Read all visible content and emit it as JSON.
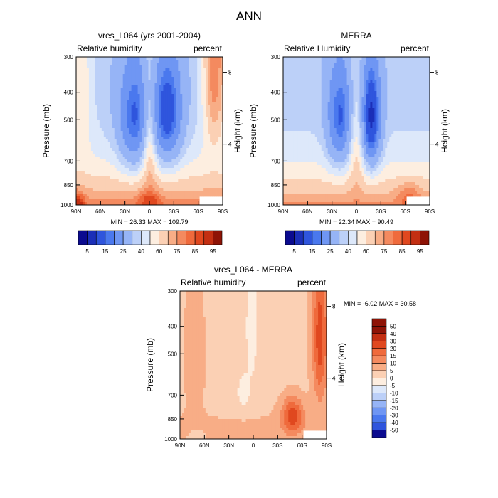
{
  "figure_title": "ANN",
  "chart_data": [
    {
      "type": "heatmap",
      "title": "vres_L064 (yrs 2001-2004)",
      "left_label": "Relative humidity",
      "right_label": "percent",
      "ylabel": "Pressure (mb)",
      "y2label": "Height (km)",
      "y_ticks": [
        300,
        400,
        500,
        700,
        850,
        1000
      ],
      "y2_ticks": [
        8,
        4
      ],
      "x_ticks": [
        "90N",
        "60N",
        "30N",
        "0",
        "30S",
        "60S",
        "90S"
      ],
      "stats": "MIN =  26.33  MAX = 109.79",
      "colorbar_labels": [
        "5",
        "15",
        "25",
        "40",
        "60",
        "75",
        "85",
        "95"
      ],
      "field": "model"
    },
    {
      "type": "heatmap",
      "title": "MERRA",
      "left_label": "Relative Humidity",
      "right_label": "percent",
      "ylabel": "Pressure (mb)",
      "y2label": "Height (km)",
      "y_ticks": [
        300,
        400,
        500,
        700,
        850,
        1000
      ],
      "y2_ticks": [
        8,
        4
      ],
      "x_ticks": [
        "90N",
        "60N",
        "30N",
        "0",
        "30S",
        "60S",
        "90S"
      ],
      "stats": "MIN =  22.34  MAX =  90.49",
      "colorbar_labels": [
        "5",
        "15",
        "25",
        "40",
        "60",
        "75",
        "85",
        "95"
      ],
      "field": "obs"
    },
    {
      "type": "heatmap",
      "title": "vres_L064 - MERRA",
      "left_label": "Relative humidity",
      "right_label": "percent",
      "ylabel": "Pressure (mb)",
      "y2label": "Height (km)",
      "y_ticks": [
        300,
        400,
        500,
        700,
        850,
        1000
      ],
      "y2_ticks": [
        8,
        4
      ],
      "x_ticks": [
        "90N",
        "60N",
        "30N",
        "0",
        "30S",
        "60S",
        "90S"
      ],
      "stats": "MIN = -6.02  MAX =  30.58",
      "colorbar_labels": [
        "50",
        "40",
        "30",
        "20",
        "15",
        "10",
        "5",
        "0",
        "-5",
        "-10",
        "-15",
        "-20",
        "-30",
        "-40",
        "-50"
      ],
      "field": "diff"
    }
  ],
  "colors": {
    "full_scale": [
      "#0b0b8f",
      "#1b2fb8",
      "#2f55dd",
      "#4a78ee",
      "#6f96f3",
      "#96b4f6",
      "#bcd0f8",
      "#dde8fa",
      "#fdeee0",
      "#fbd0b4",
      "#f8ad86",
      "#f48a5f",
      "#ef6a3c",
      "#e0481f",
      "#c32f12",
      "#8e1306"
    ],
    "diff_scale": [
      "#8e1306",
      "#c32f12",
      "#e0481f",
      "#ef6a3c",
      "#f48a5f",
      "#f8ad86",
      "#fbd0b4",
      "#fdeee0",
      "#dde8fa",
      "#bcd0f8",
      "#96b4f6",
      "#6f96f3",
      "#4a78ee",
      "#2f55dd",
      "#0b0b8f"
    ]
  }
}
